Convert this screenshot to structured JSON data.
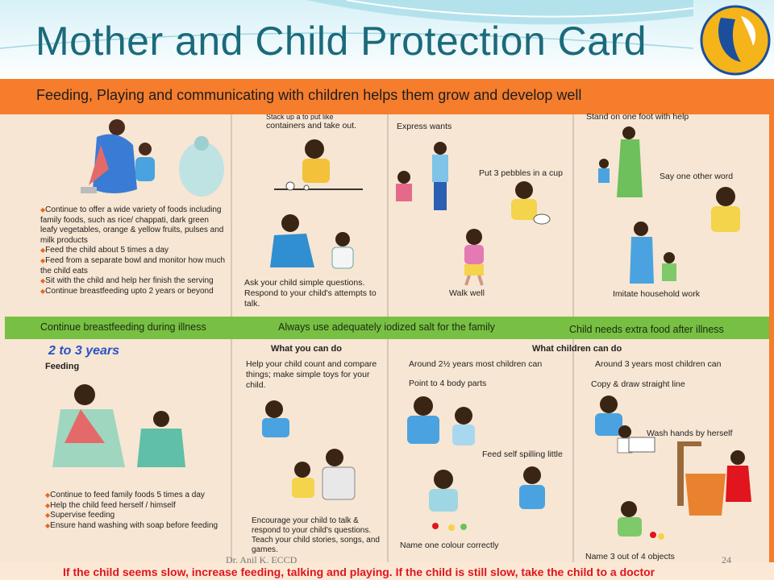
{
  "title": "Mother and Child Protection Card",
  "banner": "Feeding, Playing and communicating with children helps them grow and develop well",
  "top": {
    "col1_bullets": [
      "Continue to offer a wide variety of  foods including family foods, such as rice/ chappati, dark green leafy vegetables, orange & yellow fruits, pulses and milk products",
      "Feed the child about 5 times a day",
      "Feed from a separate bowl and monitor how much the child eats",
      "Sit with the child and help her finish the serving",
      "Continue breastfeeding upto 2 years or beyond"
    ],
    "col2_top": "containers and take out.",
    "col2_top_partial": "Stack up a to put like",
    "col2_bottom": "Ask your child simple questions. Respond to your child's attempts to talk.",
    "col3_express": "Express wants",
    "col3_pebbles": "Put 3 pebbles in a cup",
    "col3_walk": "Walk well",
    "col4_stand": "Stand on one foot with help",
    "col4_word": "Say one other word",
    "col4_imitate": "Imitate household work"
  },
  "green_band": {
    "left": "Continue breastfeeding during illness",
    "middle": "Always use adequately iodized salt for the family",
    "right": "Child needs extra food after illness"
  },
  "bottom": {
    "age": "2 to 3 years",
    "feeding": "Feeding",
    "col1_bullets": [
      "Continue to feed family foods 5 times a day",
      "Help the child feed herself / himself",
      "Supervise feeding",
      "Ensure hand washing with soap before feeding"
    ],
    "what_you_can_do": "What you can do",
    "what_children_can_do": "What children can do",
    "col2_top": "Help your child count and compare things; make simple toys for your child.",
    "col2_bottom": "Encourage your child to talk & respond to your child's questions. Teach your child stories, songs, and games.",
    "col3_around": "Around 2½ years most children can",
    "col3_point": "Point to 4 body parts",
    "col3_feed": "Feed self spilling little",
    "col3_colour": "Name one colour correctly",
    "col4_around": "Around 3 years most children can",
    "col4_copy": "Copy & draw straight line",
    "col4_wash": "Wash hands by herself",
    "col4_name": "Name 3 out of 4 objects"
  },
  "bottom_warning": "If the child seems slow, increase feeding, talking and playing. If the child is still slow, take the child to a doctor",
  "footer": {
    "author": "Dr. Anil K. ECCD",
    "page": "24"
  },
  "colors": {
    "title": "#1b6a7b",
    "banner": "#f57d2c",
    "green": "#77c043",
    "warning": "#e0151d",
    "logo": "#f5b41a"
  }
}
